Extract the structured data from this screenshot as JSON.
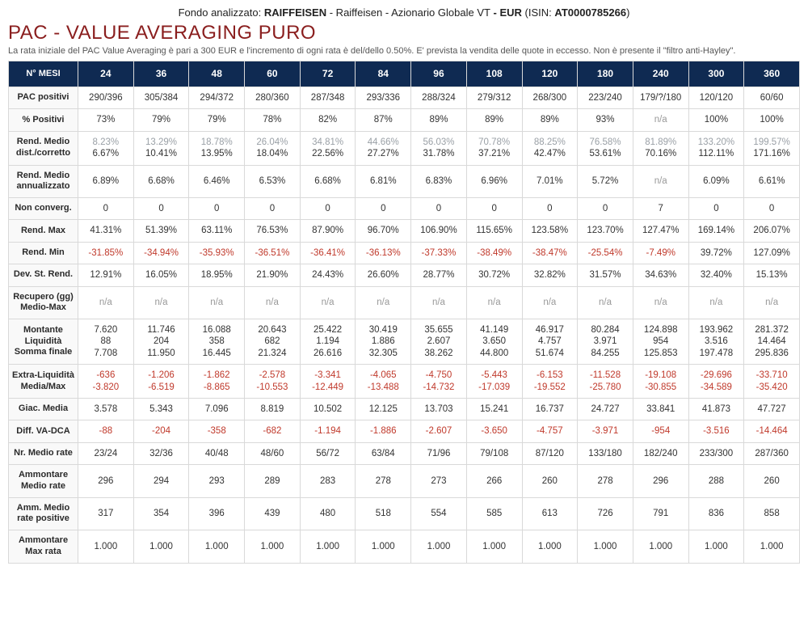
{
  "header": {
    "prefix": "Fondo analizzato: ",
    "fund_bold": "RAIFFEISEN",
    "fund_rest": " - Raiffeisen - Azionario Globale VT",
    "ccy": " - EUR",
    "isin_label": " (ISIN: ",
    "isin": "AT0000785266",
    "isin_close": ")"
  },
  "title": "PAC - VALUE AVERAGING PURO",
  "title_color": "#8a1e1e",
  "subtitle": "La rata iniziale del PAC Value Averaging è pari a 300 EUR e l'incremento di ogni rata è del/dello 0.50%. E' prevista la vendita delle quote in eccesso. Non è presente il \"filtro anti-Hayley\".",
  "table": {
    "header_bg": "#0f2a52",
    "header_label": "N° MESI",
    "columns": [
      "24",
      "36",
      "48",
      "60",
      "72",
      "84",
      "96",
      "108",
      "120",
      "180",
      "240",
      "300",
      "360"
    ],
    "col_label_width": "86px",
    "rows": [
      {
        "label": "PAC positivi",
        "cells": [
          "290/396",
          "305/384",
          "294/372",
          "280/360",
          "287/348",
          "293/336",
          "288/324",
          "279/312",
          "268/300",
          "223/240",
          "179/?/180",
          "120/120",
          "60/60"
        ]
      },
      {
        "label": "% Positivi",
        "cells": [
          "73%",
          "79%",
          "79%",
          "78%",
          "82%",
          "87%",
          "89%",
          "89%",
          "89%",
          "93%",
          "n/a",
          "100%",
          "100%"
        ]
      },
      {
        "label": "Rend. Medio\ndist./corretto",
        "cells": [
          [
            "8.23%",
            "6.67%"
          ],
          [
            "13.29%",
            "10.41%"
          ],
          [
            "18.78%",
            "13.95%"
          ],
          [
            "26.04%",
            "18.04%"
          ],
          [
            "34.81%",
            "22.56%"
          ],
          [
            "44.66%",
            "27.27%"
          ],
          [
            "56.03%",
            "31.78%"
          ],
          [
            "70.78%",
            "37.21%"
          ],
          [
            "88.25%",
            "42.47%"
          ],
          [
            "76.58%",
            "53.61%"
          ],
          [
            "81.89%",
            "70.16%"
          ],
          [
            "133.20%",
            "112.11%"
          ],
          [
            "199.57%",
            "171.16%"
          ]
        ],
        "top_color": "#9aa0a6"
      },
      {
        "label": "Rend. Medio\nannualizzato",
        "cells": [
          "6.89%",
          "6.68%",
          "6.46%",
          "6.53%",
          "6.68%",
          "6.81%",
          "6.83%",
          "6.96%",
          "7.01%",
          "5.72%",
          "n/a",
          "6.09%",
          "6.61%"
        ]
      },
      {
        "label": "Non converg.",
        "cells": [
          "0",
          "0",
          "0",
          "0",
          "0",
          "0",
          "0",
          "0",
          "0",
          "0",
          "7",
          "0",
          "0"
        ]
      },
      {
        "label": "Rend. Max",
        "cells": [
          "41.31%",
          "51.39%",
          "63.11%",
          "76.53%",
          "87.90%",
          "96.70%",
          "106.90%",
          "115.65%",
          "123.58%",
          "123.70%",
          "127.47%",
          "169.14%",
          "206.07%"
        ]
      },
      {
        "label": "Rend. Min",
        "cells": [
          "-31.85%",
          "-34.94%",
          "-35.93%",
          "-36.51%",
          "-36.41%",
          "-36.13%",
          "-37.33%",
          "-38.49%",
          "-38.47%",
          "-25.54%",
          "-7.49%",
          "39.72%",
          "127.09%"
        ],
        "neg_to": 11
      },
      {
        "label": "Dev. St. Rend.",
        "cells": [
          "12.91%",
          "16.05%",
          "18.95%",
          "21.90%",
          "24.43%",
          "26.60%",
          "28.77%",
          "30.72%",
          "32.82%",
          "31.57%",
          "34.63%",
          "32.40%",
          "15.13%"
        ]
      },
      {
        "label": "Recupero (gg)\nMedio-Max",
        "cells": [
          "n/a",
          "n/a",
          "n/a",
          "n/a",
          "n/a",
          "n/a",
          "n/a",
          "n/a",
          "n/a",
          "n/a",
          "n/a",
          "n/a",
          "n/a"
        ]
      },
      {
        "label": "Montante\nLiquidità\nSomma finale",
        "cells": [
          [
            "7.620",
            "88",
            "7.708"
          ],
          [
            "11.746",
            "204",
            "11.950"
          ],
          [
            "16.088",
            "358",
            "16.445"
          ],
          [
            "20.643",
            "682",
            "21.324"
          ],
          [
            "25.422",
            "1.194",
            "26.616"
          ],
          [
            "30.419",
            "1.886",
            "32.305"
          ],
          [
            "35.655",
            "2.607",
            "38.262"
          ],
          [
            "41.149",
            "3.650",
            "44.800"
          ],
          [
            "46.917",
            "4.757",
            "51.674"
          ],
          [
            "80.284",
            "3.971",
            "84.255"
          ],
          [
            "124.898",
            "954",
            "125.853"
          ],
          [
            "193.962",
            "3.516",
            "197.478"
          ],
          [
            "281.372",
            "14.464",
            "295.836"
          ]
        ]
      },
      {
        "label": "Extra-Liquidità\nMedia/Max",
        "cells": [
          [
            "-636",
            "-3.820"
          ],
          [
            "-1.206",
            "-6.519"
          ],
          [
            "-1.862",
            "-8.865"
          ],
          [
            "-2.578",
            "-10.553"
          ],
          [
            "-3.341",
            "-12.449"
          ],
          [
            "-4.065",
            "-13.488"
          ],
          [
            "-4.750",
            "-14.732"
          ],
          [
            "-5.443",
            "-17.039"
          ],
          [
            "-6.153",
            "-19.552"
          ],
          [
            "-11.528",
            "-25.780"
          ],
          [
            "-19.108",
            "-30.855"
          ],
          [
            "-29.696",
            "-34.589"
          ],
          [
            "-33.710",
            "-35.420"
          ]
        ],
        "all_neg": true
      },
      {
        "label": "Giac. Media",
        "cells": [
          "3.578",
          "5.343",
          "7.096",
          "8.819",
          "10.502",
          "12.125",
          "13.703",
          "15.241",
          "16.737",
          "24.727",
          "33.841",
          "41.873",
          "47.727"
        ]
      },
      {
        "label": "Diff. VA-DCA",
        "cells": [
          "-88",
          "-204",
          "-358",
          "-682",
          "-1.194",
          "-1.886",
          "-2.607",
          "-3.650",
          "-4.757",
          "-3.971",
          "-954",
          "-3.516",
          "-14.464"
        ],
        "all_neg": true
      },
      {
        "label": "Nr. Medio rate",
        "cells": [
          "23/24",
          "32/36",
          "40/48",
          "48/60",
          "56/72",
          "63/84",
          "71/96",
          "79/108",
          "87/120",
          "133/180",
          "182/240",
          "233/300",
          "287/360"
        ]
      },
      {
        "label": "Ammontare\nMedio rate",
        "cells": [
          "296",
          "294",
          "293",
          "289",
          "283",
          "278",
          "273",
          "266",
          "260",
          "278",
          "296",
          "288",
          "260"
        ]
      },
      {
        "label": "Amm. Medio\nrate positive",
        "cells": [
          "317",
          "354",
          "396",
          "439",
          "480",
          "518",
          "554",
          "585",
          "613",
          "726",
          "791",
          "836",
          "858"
        ]
      },
      {
        "label": "Ammontare\nMax rata",
        "cells": [
          "1.000",
          "1.000",
          "1.000",
          "1.000",
          "1.000",
          "1.000",
          "1.000",
          "1.000",
          "1.000",
          "1.000",
          "1.000",
          "1.000",
          "1.000"
        ]
      }
    ],
    "neg_color": "#c0392b",
    "pos_color": "#333333"
  }
}
